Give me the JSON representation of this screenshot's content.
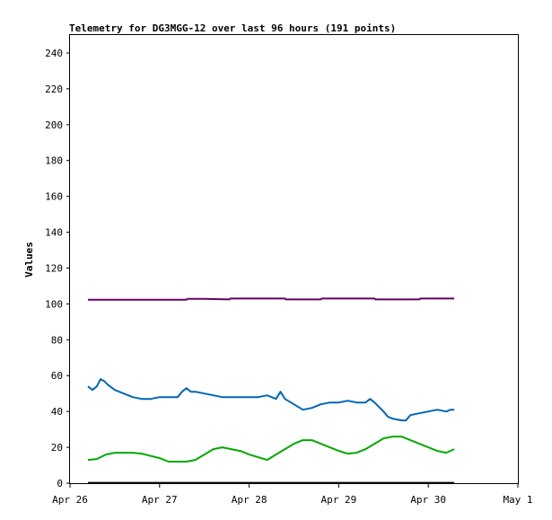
{
  "chart_data": {
    "type": "line",
    "title": "Telemetry for DG3MGG-12 over last 96 hours (191 points)",
    "xlabel": "",
    "ylabel": "Values",
    "xlim": [
      "Apr 26",
      "May 1"
    ],
    "ylim": [
      0,
      250
    ],
    "x_tick_labels": [
      "Apr 26",
      "Apr 27",
      "Apr 28",
      "Apr 29",
      "Apr 30",
      "May 1"
    ],
    "y_tick_labels": [
      "0",
      "20",
      "40",
      "60",
      "80",
      "100",
      "120",
      "140",
      "160",
      "180",
      "200",
      "220",
      "240"
    ],
    "grid": false,
    "legend": "none",
    "x_unit": "days since Apr 26 00:00",
    "series": [
      {
        "color": "#660066",
        "x": [
          0.2,
          1.0,
          1.3,
          1.31,
          1.5,
          1.78,
          1.79,
          2.0,
          2.4,
          2.41,
          2.7,
          2.8,
          2.81,
          3.0,
          3.4,
          3.41,
          3.6,
          3.9,
          3.91,
          4.29
        ],
        "y": [
          102.3,
          102.3,
          102.3,
          102.8,
          102.8,
          102.5,
          103.0,
          103.0,
          103.0,
          102.5,
          102.5,
          102.5,
          103.0,
          103.0,
          103.0,
          102.5,
          102.5,
          102.5,
          103.0,
          103.0
        ]
      },
      {
        "color": "#0066b3",
        "x": [
          0.2,
          0.25,
          0.3,
          0.34,
          0.38,
          0.42,
          0.5,
          0.6,
          0.7,
          0.8,
          0.9,
          1.0,
          1.1,
          1.2,
          1.25,
          1.3,
          1.35,
          1.4,
          1.5,
          1.6,
          1.7,
          1.8,
          1.9,
          2.0,
          2.1,
          2.2,
          2.3,
          2.35,
          2.4,
          2.5,
          2.6,
          2.7,
          2.8,
          2.9,
          3.0,
          3.1,
          3.2,
          3.3,
          3.35,
          3.4,
          3.5,
          3.55,
          3.6,
          3.7,
          3.75,
          3.8,
          3.9,
          4.0,
          4.1,
          4.2,
          4.25,
          4.29
        ],
        "y": [
          54,
          52,
          54,
          58,
          57,
          55,
          52,
          50,
          48,
          47,
          47,
          48,
          48,
          48,
          51,
          53,
          51,
          51,
          50,
          49,
          48,
          48,
          48,
          48,
          48,
          49,
          47,
          51,
          47,
          44,
          41,
          42,
          44,
          45,
          45,
          46,
          45,
          45,
          47,
          45,
          40,
          37,
          36,
          35,
          35,
          38,
          39,
          40,
          41,
          40,
          41,
          41
        ]
      },
      {
        "color": "#00aa00",
        "x": [
          0.2,
          0.3,
          0.4,
          0.5,
          0.7,
          0.8,
          1.0,
          1.1,
          1.3,
          1.4,
          1.5,
          1.6,
          1.7,
          1.8,
          1.9,
          2.0,
          2.1,
          2.2,
          2.3,
          2.4,
          2.5,
          2.6,
          2.7,
          2.8,
          2.9,
          3.0,
          3.1,
          3.2,
          3.3,
          3.4,
          3.5,
          3.6,
          3.7,
          3.8,
          3.9,
          4.0,
          4.1,
          4.2,
          4.29
        ],
        "y": [
          13,
          13.5,
          16,
          17,
          17,
          16.5,
          14,
          12,
          12,
          13,
          16,
          19,
          20,
          19,
          18,
          16,
          14.5,
          13,
          16,
          19,
          22,
          24,
          24,
          22,
          20,
          18,
          16.5,
          17,
          19,
          22,
          25,
          26,
          26,
          24,
          22,
          20,
          18,
          17,
          19
        ]
      },
      {
        "color": "#000000",
        "x": [
          0.2,
          4.29
        ],
        "y": [
          0.2,
          0.2
        ]
      }
    ]
  }
}
